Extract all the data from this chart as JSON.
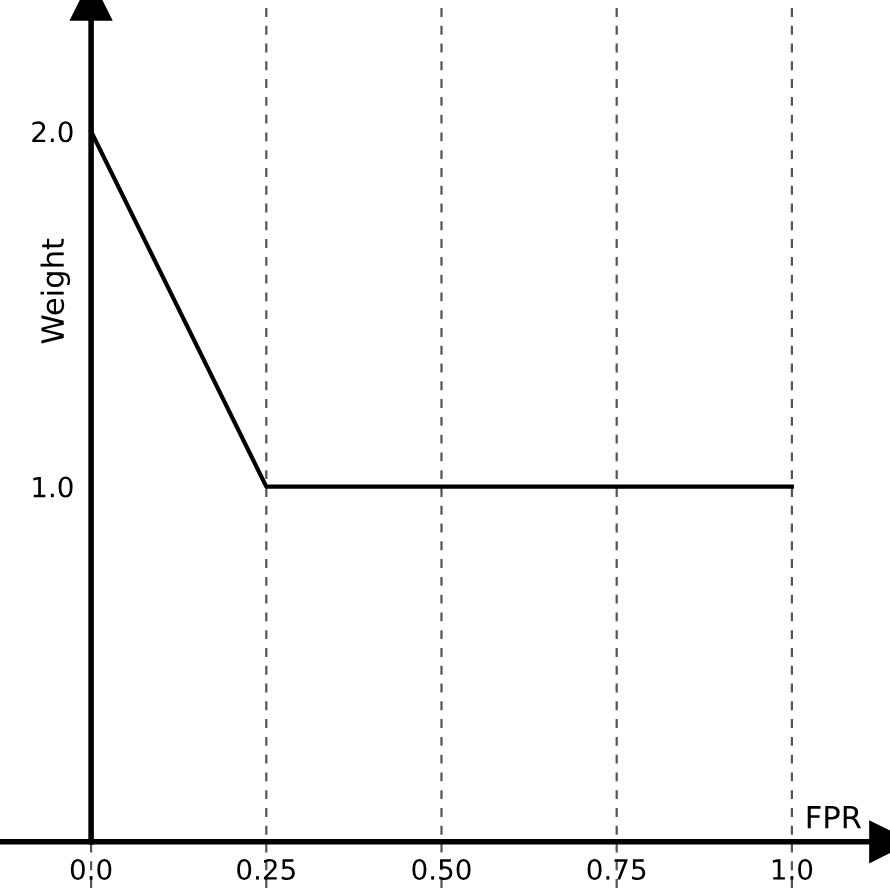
{
  "chart_data": {
    "type": "line",
    "xlabel": "FPR",
    "ylabel": "Weight",
    "x": [
      0,
      0.25,
      1.0
    ],
    "series": [
      {
        "color": "#000000",
        "values": [
          2.0,
          1.0,
          1.0
        ]
      }
    ],
    "xlim": [
      -0.13,
      1.14
    ],
    "ylim": [
      -0.13,
      2.37
    ],
    "xticks": [
      {
        "value": 0,
        "label": "0.0"
      },
      0.25,
      {
        "value": 0.5,
        "label": "0.50"
      },
      0.75,
      {
        "value": 1.0,
        "label": "1.0"
      }
    ],
    "yticks": [
      {
        "value": 1.0,
        "label": "1.0"
      },
      {
        "value": 2.0,
        "label": "2.0"
      }
    ],
    "grid": "x",
    "marker": "none",
    "line_style": "solid",
    "legend": false
  }
}
